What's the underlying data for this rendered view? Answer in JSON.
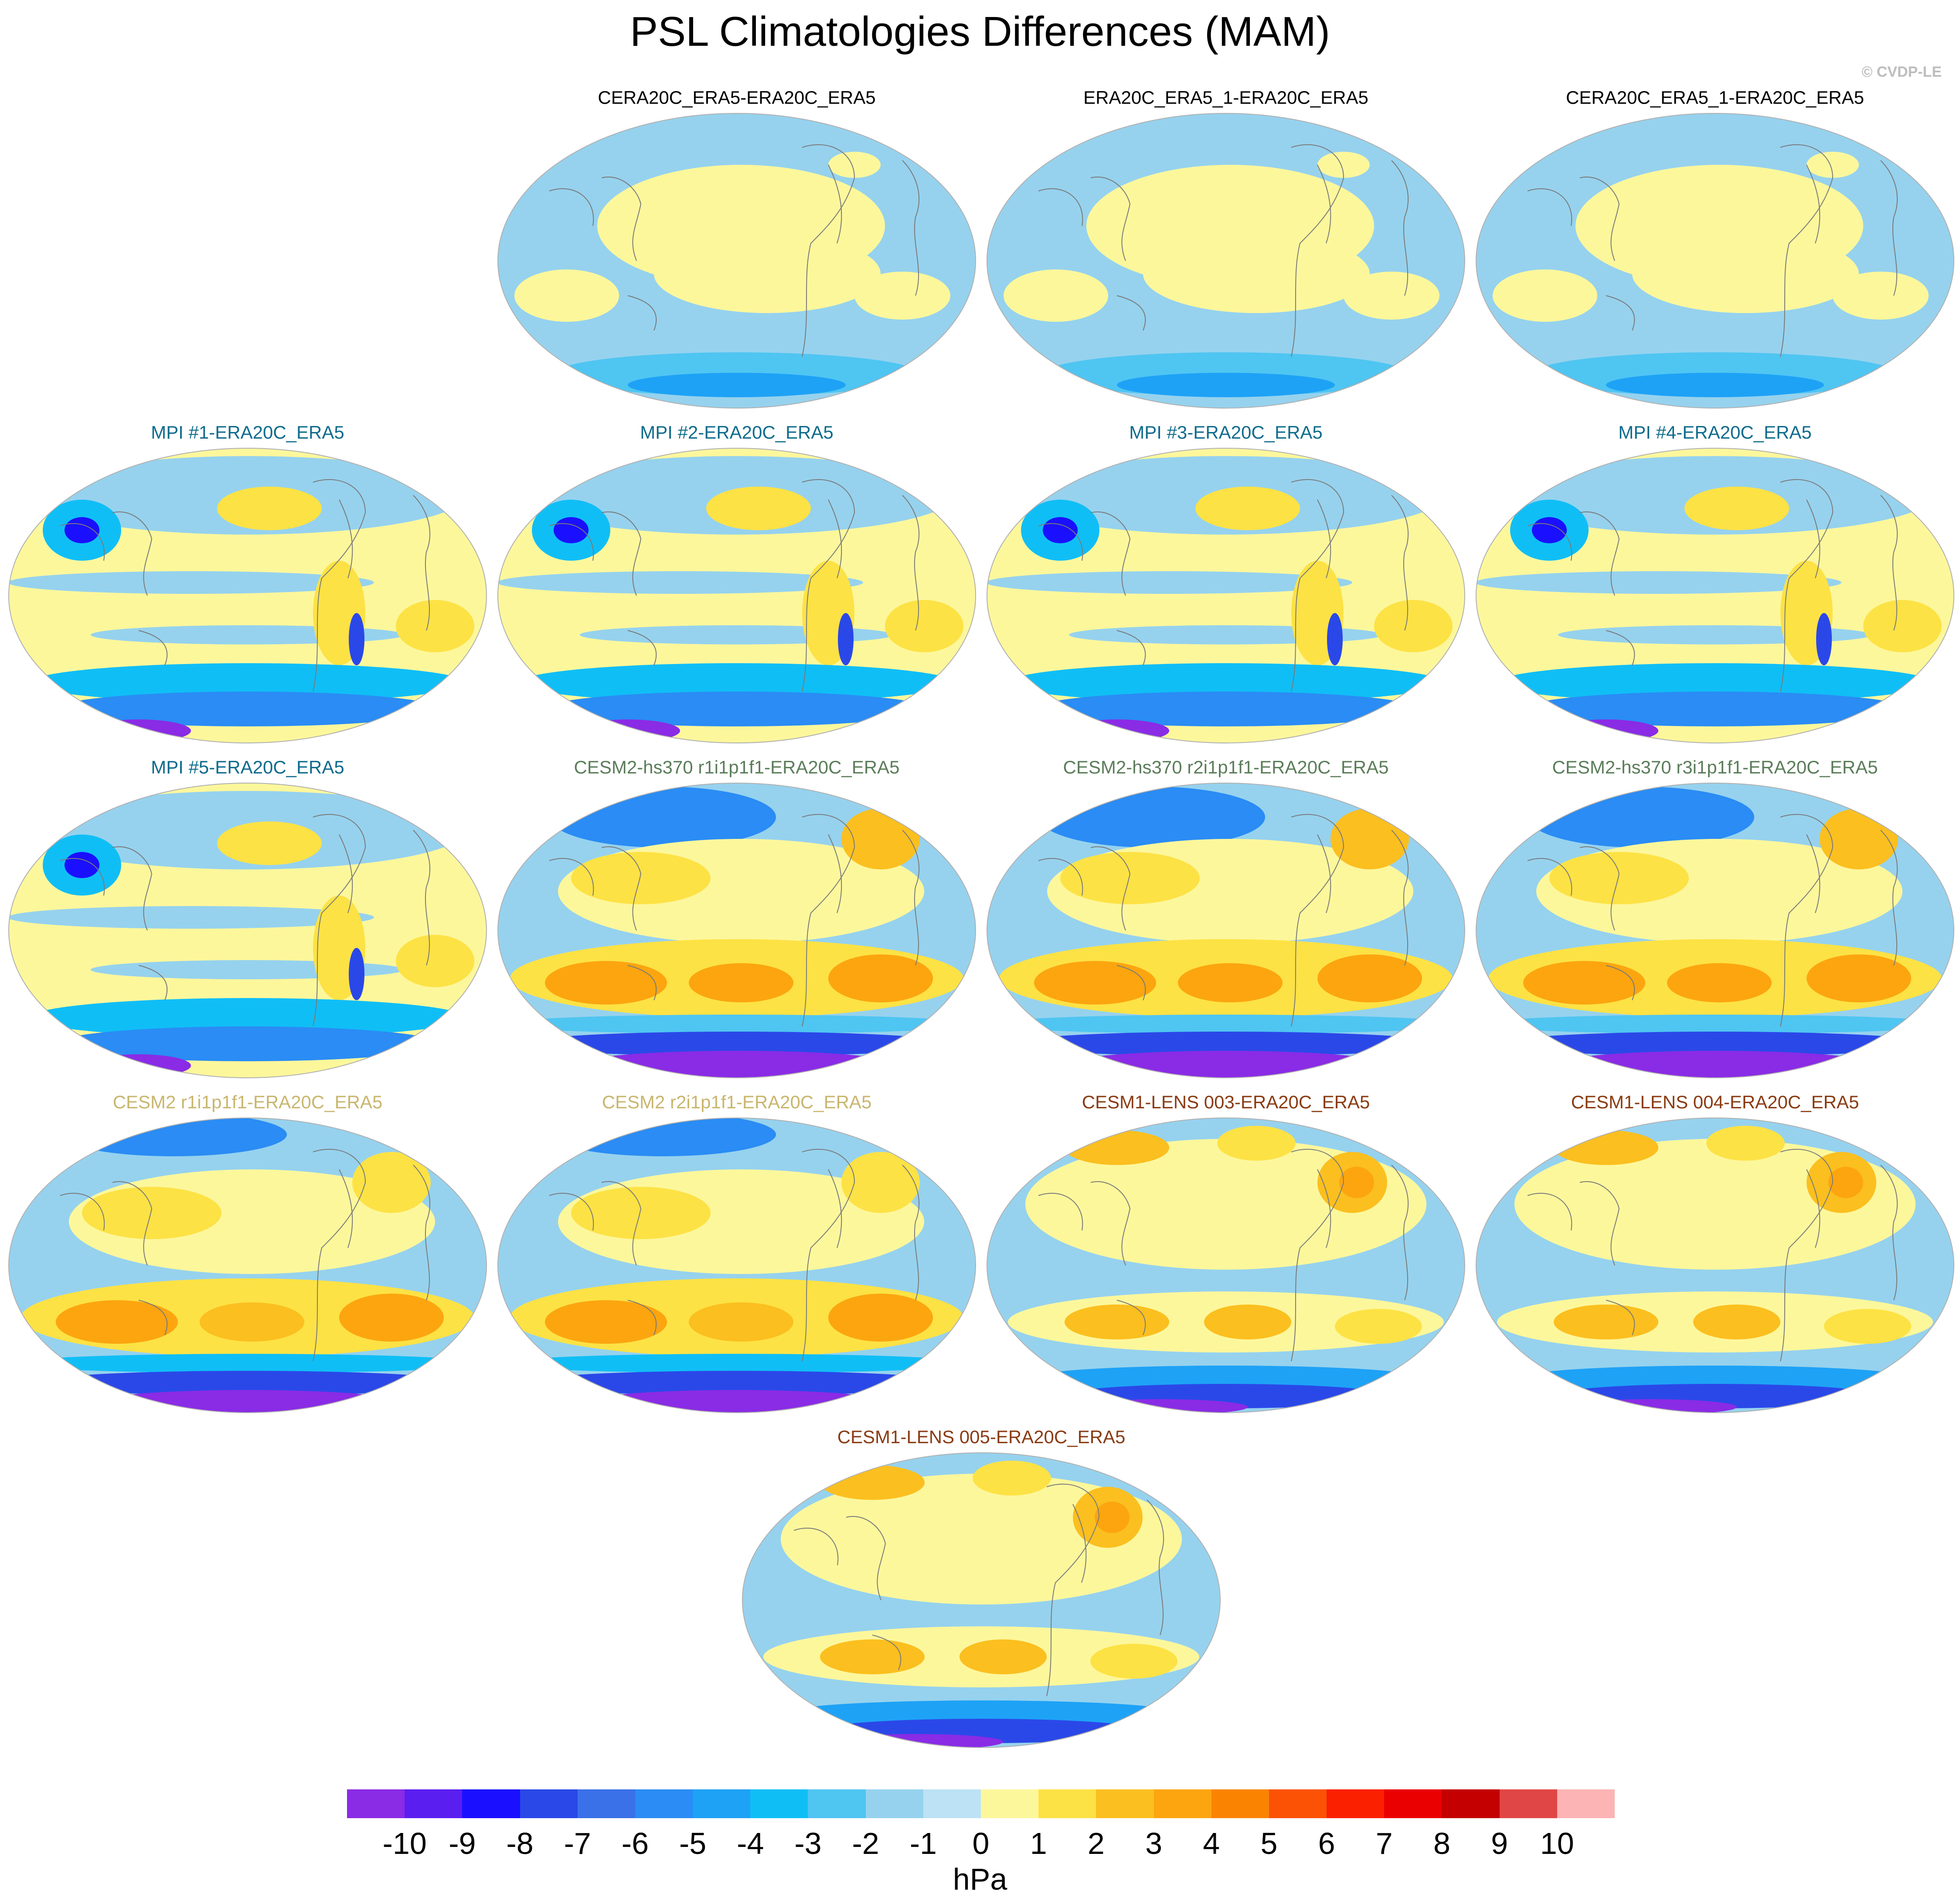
{
  "title": "PSL Climatologies Differences (MAM)",
  "copyright": "© CVDP-LE",
  "colors": {
    "ocean_neutral_neg": "#bde2f5",
    "land_outline": "#7a7a7a"
  },
  "panels": [
    {
      "label": "CERA20C_ERA5-ERA20C_ERA5",
      "color": "#000000",
      "style": "reanalysis"
    },
    {
      "label": "ERA20C_ERA5_1-ERA20C_ERA5",
      "color": "#000000",
      "style": "reanalysis"
    },
    {
      "label": "CERA20C_ERA5_1-ERA20C_ERA5",
      "color": "#000000",
      "style": "reanalysis"
    },
    {
      "label": "MPI #1-ERA20C_ERA5",
      "color": "#0e6b8c",
      "style": "mpi"
    },
    {
      "label": "MPI #2-ERA20C_ERA5",
      "color": "#0e6b8c",
      "style": "mpi"
    },
    {
      "label": "MPI #3-ERA20C_ERA5",
      "color": "#0e6b8c",
      "style": "mpi"
    },
    {
      "label": "MPI #4-ERA20C_ERA5",
      "color": "#0e6b8c",
      "style": "mpi"
    },
    {
      "label": "MPI #5-ERA20C_ERA5",
      "color": "#0e6b8c",
      "style": "mpi"
    },
    {
      "label": "CESM2-hs370 r1i1p1f1-ERA20C_ERA5",
      "color": "#5b7d5a",
      "style": "cesm2hs"
    },
    {
      "label": "CESM2-hs370 r2i1p1f1-ERA20C_ERA5",
      "color": "#5b7d5a",
      "style": "cesm2hs"
    },
    {
      "label": "CESM2-hs370 r3i1p1f1-ERA20C_ERA5",
      "color": "#5b7d5a",
      "style": "cesm2hs"
    },
    {
      "label": "CESM2 r1i1p1f1-ERA20C_ERA5",
      "color": "#c9b66e",
      "style": "cesm2"
    },
    {
      "label": "CESM2 r2i1p1f1-ERA20C_ERA5",
      "color": "#c9b66e",
      "style": "cesm2"
    },
    {
      "label": "CESM1-LENS 003-ERA20C_ERA5",
      "color": "#8a3b12",
      "style": "cesm1"
    },
    {
      "label": "CESM1-LENS 004-ERA20C_ERA5",
      "color": "#8a3b12",
      "style": "cesm1"
    },
    {
      "label": "CESM1-LENS 005-ERA20C_ERA5",
      "color": "#8a3b12",
      "style": "cesm1"
    }
  ],
  "colorbar": {
    "unit": "hPa",
    "labels": [
      "-10",
      "-9",
      "-8",
      "-7",
      "-6",
      "-5",
      "-4",
      "-3",
      "-2",
      "-1",
      "0",
      "1",
      "2",
      "3",
      "4",
      "5",
      "6",
      "7",
      "8",
      "9",
      "10"
    ],
    "colors": [
      "#8a2be6",
      "#5a1ef0",
      "#1a10ff",
      "#2a48e8",
      "#3a70e8",
      "#2a8cf4",
      "#1ea2f6",
      "#10bef6",
      "#4fc5f2",
      "#96d2ee",
      "#bde2f5",
      "#fdf79c",
      "#fde245",
      "#fbbf1f",
      "#fca50f",
      "#fb8302",
      "#fb5205",
      "#fb2000",
      "#ea0000",
      "#c40000",
      "#e14646",
      "#fcb4b4"
    ]
  }
}
